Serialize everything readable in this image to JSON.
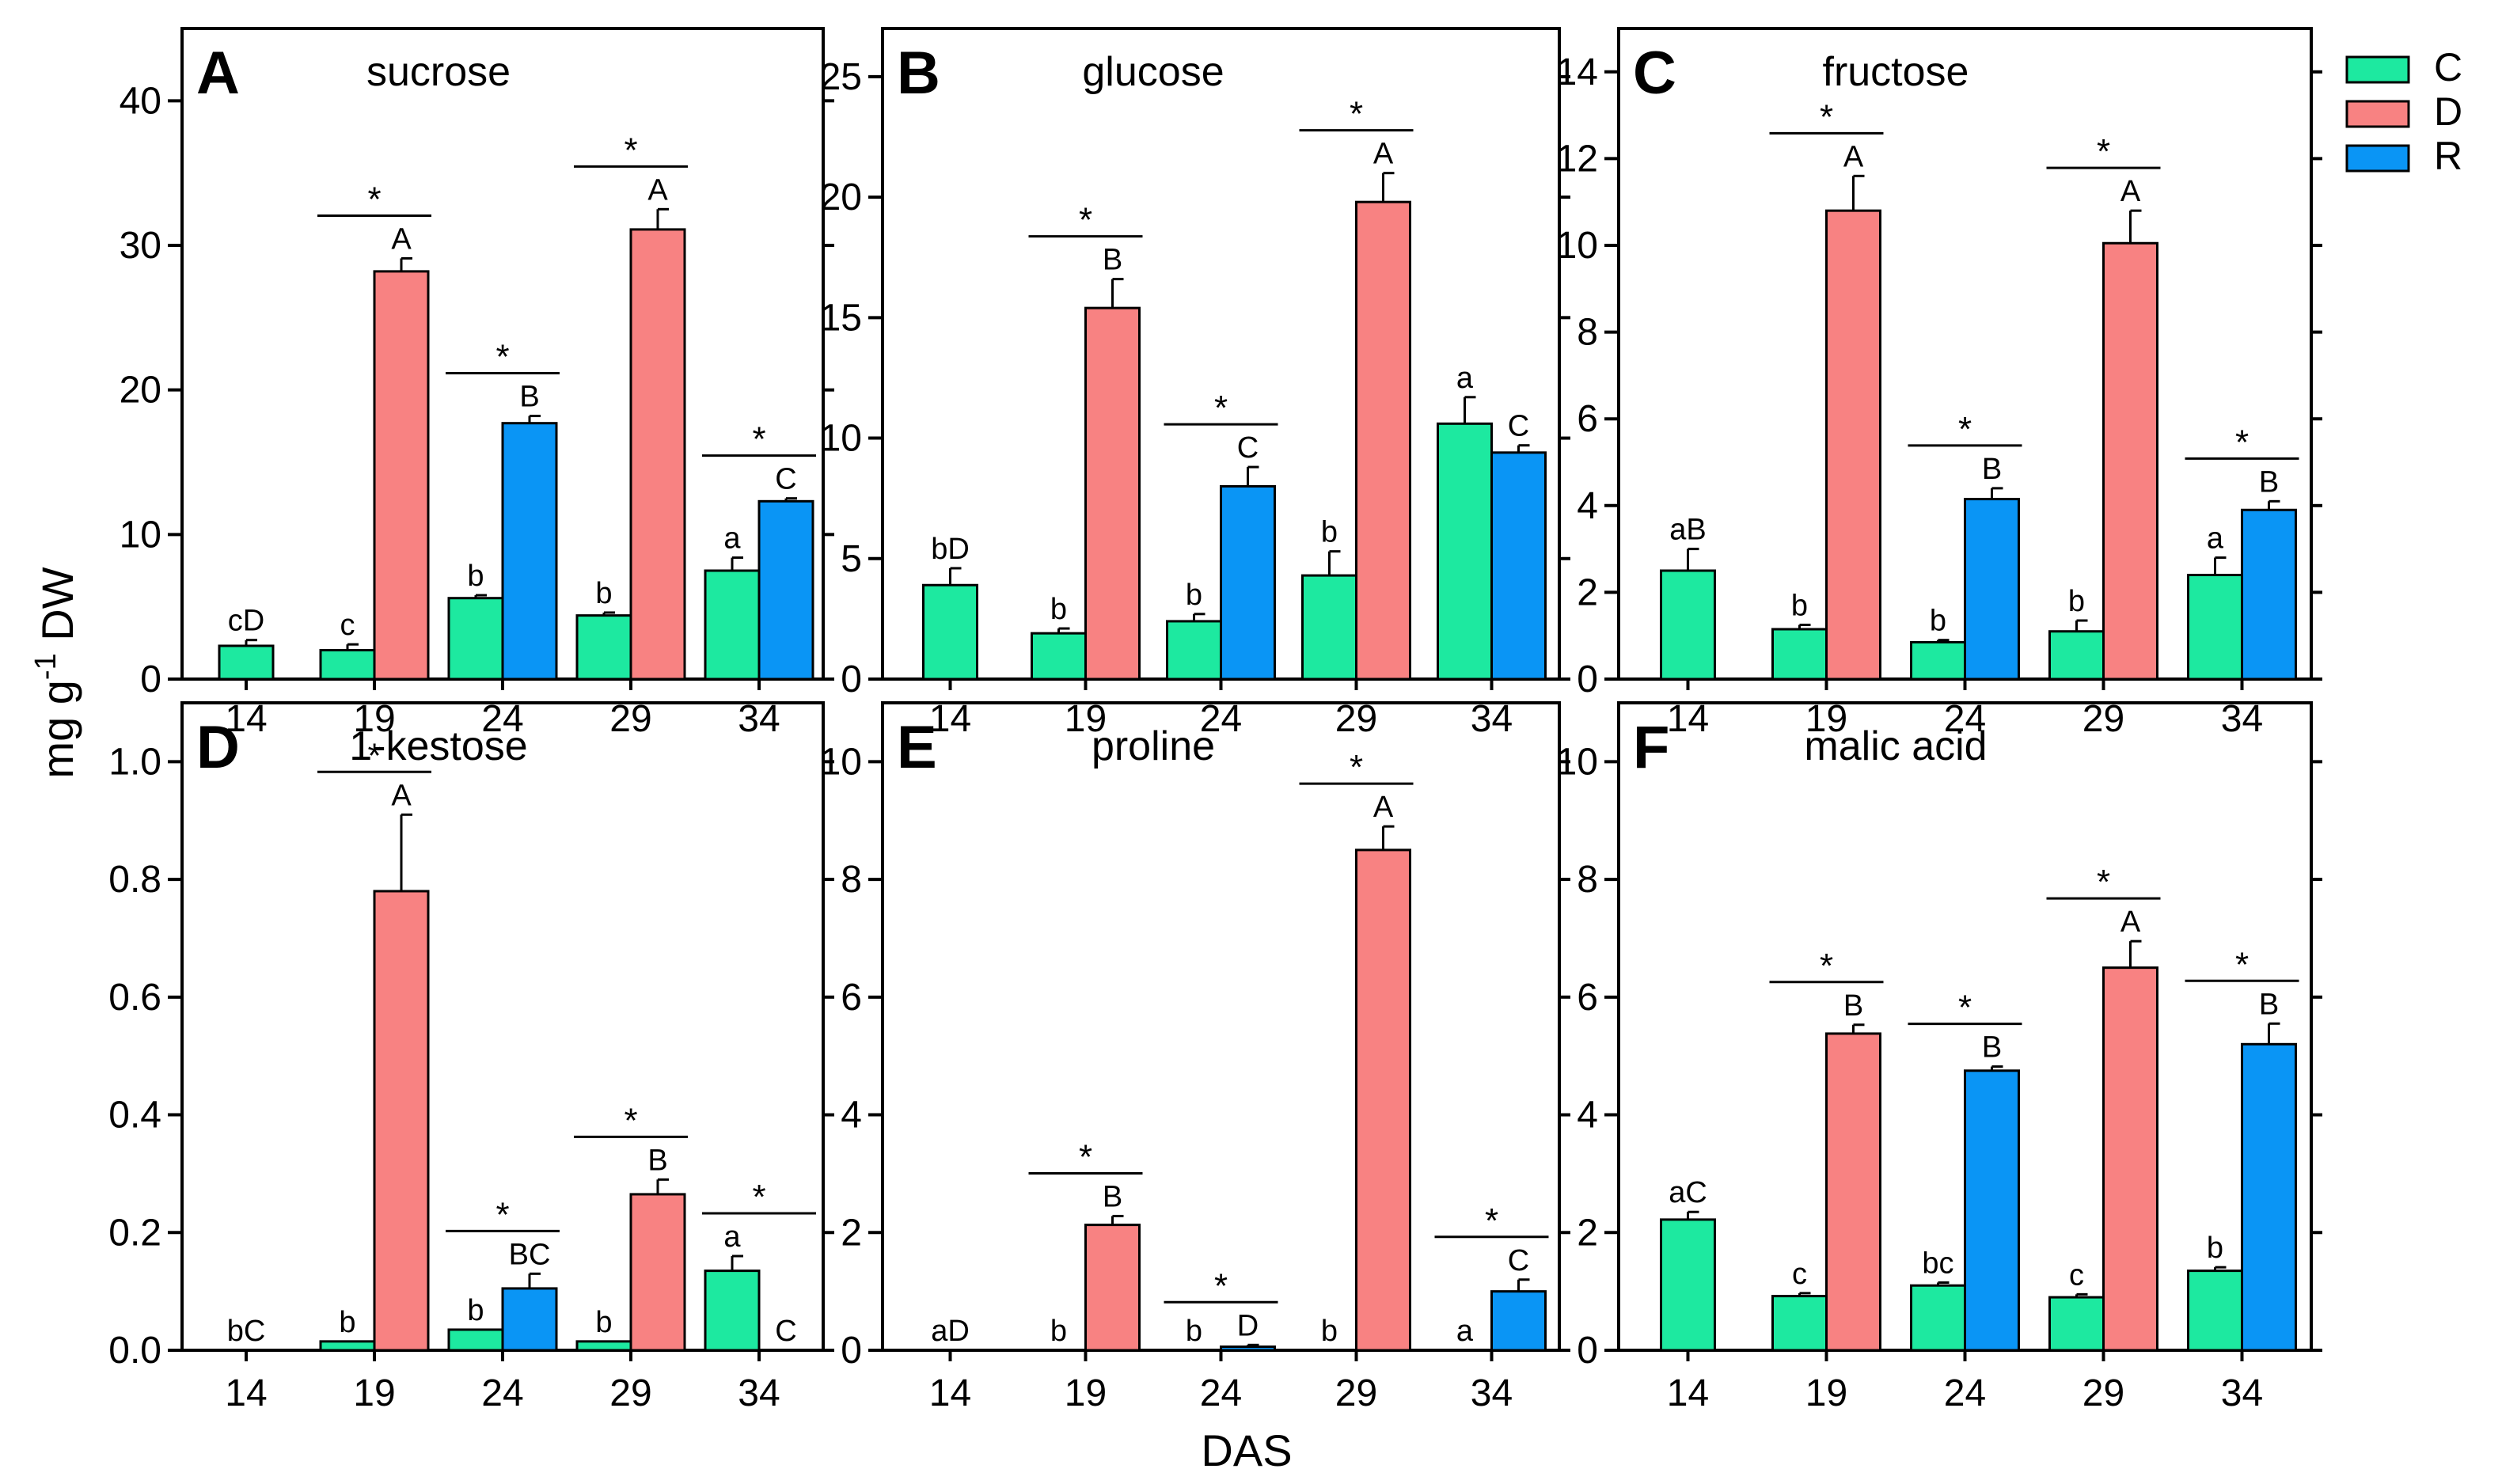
{
  "colors": {
    "C": "#1de9a0",
    "D": "#f88282",
    "R": "#0a95f5"
  },
  "y_axis_label": {
    "main": "mg g",
    "sup": "-1",
    "unit": " DW"
  },
  "x_axis_title": "DAS",
  "legend": [
    {
      "key": "C",
      "label": "C"
    },
    {
      "key": "D",
      "label": "D"
    },
    {
      "key": "R",
      "label": "R"
    }
  ],
  "chart_data": [
    {
      "type": "bar",
      "letter": "A",
      "title": "sucrose",
      "ylim": [
        0,
        45
      ],
      "yticks": [
        0,
        10,
        20,
        30,
        40
      ],
      "yticklabels": [
        "0",
        "10",
        "20",
        "30",
        "40"
      ],
      "categories": [
        "14",
        "19",
        "24",
        "29",
        "34"
      ],
      "groups": [
        {
          "bars": [
            {
              "series": "C",
              "value": 2.3,
              "err": 0.4,
              "label": "cD"
            }
          ]
        },
        {
          "bars": [
            {
              "series": "C",
              "value": 2.0,
              "err": 0.4,
              "label": "c"
            },
            {
              "series": "D",
              "value": 28.2,
              "err": 0.9,
              "label": "A"
            }
          ],
          "star": "*"
        },
        {
          "bars": [
            {
              "series": "C",
              "value": 5.6,
              "err": 0.2,
              "label": "b"
            },
            {
              "series": "R",
              "value": 17.7,
              "err": 0.5,
              "label": "B"
            }
          ],
          "star": "*"
        },
        {
          "bars": [
            {
              "series": "C",
              "value": 4.4,
              "err": 0.2,
              "label": "b"
            },
            {
              "series": "D",
              "value": 31.1,
              "err": 1.4,
              "label": "A"
            }
          ],
          "star": "*"
        },
        {
          "bars": [
            {
              "series": "C",
              "value": 7.5,
              "err": 0.9,
              "label": "a"
            },
            {
              "series": "R",
              "value": 12.3,
              "err": 0.2,
              "label": "C"
            }
          ],
          "star": "*"
        }
      ]
    },
    {
      "type": "bar",
      "letter": "B",
      "title": "glucose",
      "ylim": [
        0,
        27
      ],
      "yticks": [
        0,
        5,
        10,
        15,
        20,
        25
      ],
      "yticklabels": [
        "0",
        "5",
        "10",
        "15",
        "20",
        "25"
      ],
      "categories": [
        "14",
        "19",
        "24",
        "29",
        "34"
      ],
      "groups": [
        {
          "bars": [
            {
              "series": "C",
              "value": 3.9,
              "err": 0.7,
              "label": "bD"
            }
          ]
        },
        {
          "bars": [
            {
              "series": "C",
              "value": 1.9,
              "err": 0.2,
              "label": "b"
            },
            {
              "series": "D",
              "value": 15.4,
              "err": 1.2,
              "label": "B"
            }
          ],
          "star": "*"
        },
        {
          "bars": [
            {
              "series": "C",
              "value": 2.4,
              "err": 0.3,
              "label": "b"
            },
            {
              "series": "R",
              "value": 8.0,
              "err": 0.8,
              "label": "C"
            }
          ],
          "star": "*"
        },
        {
          "bars": [
            {
              "series": "C",
              "value": 4.3,
              "err": 1.0,
              "label": "b"
            },
            {
              "series": "D",
              "value": 19.8,
              "err": 1.2,
              "label": "A"
            }
          ],
          "star": "*"
        },
        {
          "bars": [
            {
              "series": "C",
              "value": 10.6,
              "err": 1.1,
              "label": "a"
            },
            {
              "series": "R",
              "value": 9.4,
              "err": 0.3,
              "label": "C"
            }
          ]
        }
      ]
    },
    {
      "type": "bar",
      "letter": "C",
      "title": "fructose",
      "ylim": [
        0,
        15
      ],
      "yticks": [
        0,
        2,
        4,
        6,
        8,
        10,
        12,
        14
      ],
      "yticklabels": [
        "0",
        "2",
        "4",
        "6",
        "8",
        "10",
        "12",
        "14"
      ],
      "categories": [
        "14",
        "19",
        "24",
        "29",
        "34"
      ],
      "groups": [
        {
          "bars": [
            {
              "series": "C",
              "value": 2.5,
              "err": 0.5,
              "label": "aB"
            }
          ]
        },
        {
          "bars": [
            {
              "series": "C",
              "value": 1.15,
              "err": 0.1,
              "label": "b"
            },
            {
              "series": "D",
              "value": 10.8,
              "err": 0.8,
              "label": "A"
            }
          ],
          "star": "*"
        },
        {
          "bars": [
            {
              "series": "C",
              "value": 0.85,
              "err": 0.05,
              "label": "b"
            },
            {
              "series": "R",
              "value": 4.15,
              "err": 0.25,
              "label": "B"
            }
          ],
          "star": "*"
        },
        {
          "bars": [
            {
              "series": "C",
              "value": 1.1,
              "err": 0.25,
              "label": "b"
            },
            {
              "series": "D",
              "value": 10.05,
              "err": 0.75,
              "label": "A"
            }
          ],
          "star": "*"
        },
        {
          "bars": [
            {
              "series": "C",
              "value": 2.4,
              "err": 0.4,
              "label": "a"
            },
            {
              "series": "R",
              "value": 3.9,
              "err": 0.2,
              "label": "B"
            }
          ],
          "star": "*"
        }
      ]
    },
    {
      "type": "bar",
      "letter": "D",
      "title": "1-kestose",
      "ylim": [
        0,
        1.1
      ],
      "yticks": [
        0,
        0.2,
        0.4,
        0.6,
        0.8,
        1.0
      ],
      "yticklabels": [
        "0.0",
        "0.2",
        "0.4",
        "0.6",
        "0.8",
        "1.0"
      ],
      "categories": [
        "14",
        "19",
        "24",
        "29",
        "34"
      ],
      "groups": [
        {
          "bars": [
            {
              "series": "C",
              "value": 0,
              "err": 0,
              "label": "bC"
            }
          ]
        },
        {
          "bars": [
            {
              "series": "C",
              "value": 0.015,
              "err": 0,
              "label": "b"
            },
            {
              "series": "D",
              "value": 0.78,
              "err": 0.13,
              "label": "A"
            }
          ],
          "star": "*"
        },
        {
          "bars": [
            {
              "series": "C",
              "value": 0.035,
              "err": 0,
              "label": "b"
            },
            {
              "series": "R",
              "value": 0.105,
              "err": 0.025,
              "label": "BC"
            }
          ],
          "star": "*"
        },
        {
          "bars": [
            {
              "series": "C",
              "value": 0.015,
              "err": 0,
              "label": "b"
            },
            {
              "series": "D",
              "value": 0.265,
              "err": 0.025,
              "label": "B"
            }
          ],
          "star": "*"
        },
        {
          "bars": [
            {
              "series": "C",
              "value": 0.135,
              "err": 0.025,
              "label": "a"
            },
            {
              "series": "R",
              "value": 0,
              "err": 0,
              "label": "C"
            }
          ],
          "star": "*"
        }
      ]
    },
    {
      "type": "bar",
      "letter": "E",
      "title": "proline",
      "ylim": [
        0,
        11
      ],
      "yticks": [
        0,
        2,
        4,
        6,
        8,
        10
      ],
      "yticklabels": [
        "0",
        "2",
        "4",
        "6",
        "8",
        "10"
      ],
      "categories": [
        "14",
        "19",
        "24",
        "29",
        "34"
      ],
      "groups": [
        {
          "bars": [
            {
              "series": "C",
              "value": 0,
              "err": 0,
              "label": "aD"
            }
          ]
        },
        {
          "bars": [
            {
              "series": "C",
              "value": 0,
              "err": 0,
              "label": "b"
            },
            {
              "series": "D",
              "value": 2.13,
              "err": 0.15,
              "label": "B"
            }
          ],
          "star": "*"
        },
        {
          "bars": [
            {
              "series": "C",
              "value": 0,
              "err": 0,
              "label": "b"
            },
            {
              "series": "R",
              "value": 0.06,
              "err": 0.03,
              "label": "D"
            }
          ],
          "star": "*"
        },
        {
          "bars": [
            {
              "series": "C",
              "value": 0,
              "err": 0,
              "label": "b"
            },
            {
              "series": "D",
              "value": 8.5,
              "err": 0.4,
              "label": "A"
            }
          ],
          "star": "*"
        },
        {
          "bars": [
            {
              "series": "C",
              "value": 0,
              "err": 0,
              "label": "a"
            },
            {
              "series": "R",
              "value": 1.0,
              "err": 0.2,
              "label": "C"
            }
          ],
          "star": "*"
        }
      ]
    },
    {
      "type": "bar",
      "letter": "F",
      "title": "malic acid",
      "ylim": [
        0,
        11
      ],
      "yticks": [
        0,
        2,
        4,
        6,
        8,
        10
      ],
      "yticklabels": [
        "0",
        "2",
        "4",
        "6",
        "8",
        "10"
      ],
      "categories": [
        "14",
        "19",
        "24",
        "29",
        "34"
      ],
      "groups": [
        {
          "bars": [
            {
              "series": "C",
              "value": 2.22,
              "err": 0.13,
              "label": "aC"
            }
          ]
        },
        {
          "bars": [
            {
              "series": "C",
              "value": 0.92,
              "err": 0.05,
              "label": "c"
            },
            {
              "series": "D",
              "value": 5.38,
              "err": 0.15,
              "label": "B"
            }
          ],
          "star": "*"
        },
        {
          "bars": [
            {
              "series": "C",
              "value": 1.1,
              "err": 0.05,
              "label": "bc"
            },
            {
              "series": "R",
              "value": 4.75,
              "err": 0.07,
              "label": "B"
            }
          ],
          "star": "*"
        },
        {
          "bars": [
            {
              "series": "C",
              "value": 0.9,
              "err": 0.05,
              "label": "c"
            },
            {
              "series": "D",
              "value": 6.5,
              "err": 0.45,
              "label": "A"
            }
          ],
          "star": "*"
        },
        {
          "bars": [
            {
              "series": "C",
              "value": 1.35,
              "err": 0.06,
              "label": "b"
            },
            {
              "series": "R",
              "value": 5.2,
              "err": 0.35,
              "label": "B"
            }
          ],
          "star": "*"
        }
      ]
    }
  ]
}
